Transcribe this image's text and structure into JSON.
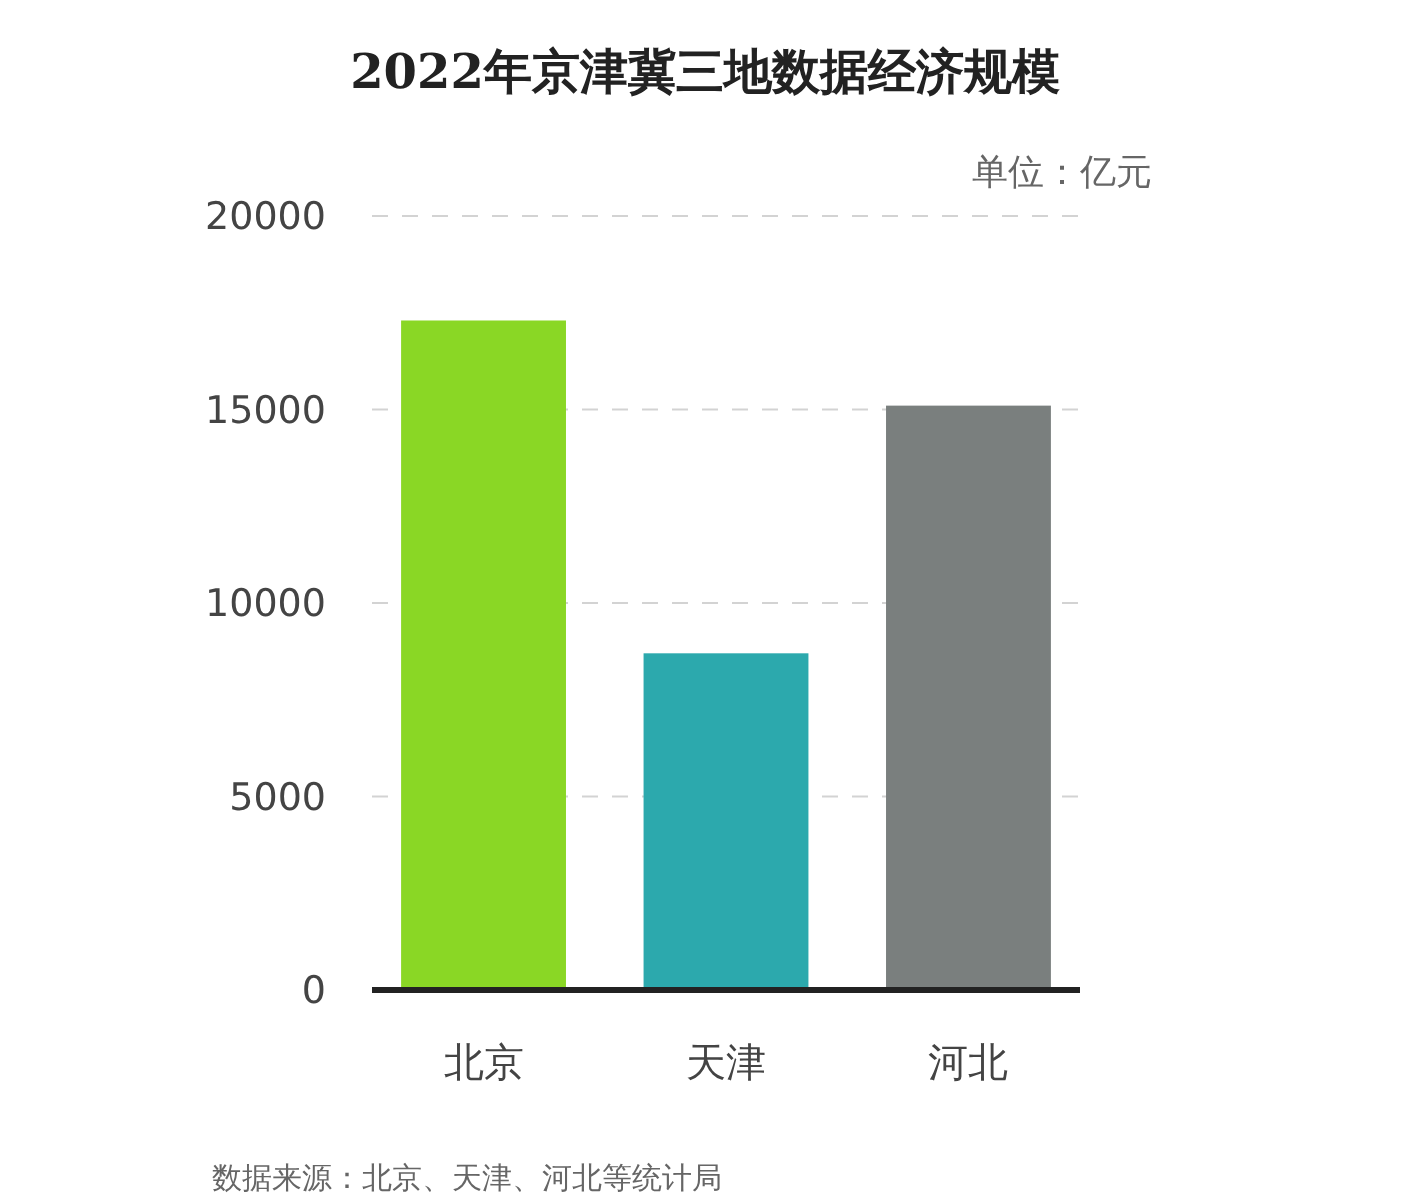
{
  "chart_data": {
    "type": "bar",
    "title": "2022年京津冀三地数据经济规模",
    "categories": [
      "北京",
      "天津",
      "河北"
    ],
    "values": [
      17300,
      8700,
      15100
    ],
    "colors": [
      "#8ad725",
      "#2ca9ad",
      "#7a7f7e"
    ],
    "ylim": [
      0,
      20000
    ],
    "yticks": [
      0,
      5000,
      10000,
      15000,
      20000
    ],
    "grid": "y",
    "annotations": [
      "单位：亿元",
      "数据来源：北京、天津、河北等统计局"
    ]
  }
}
